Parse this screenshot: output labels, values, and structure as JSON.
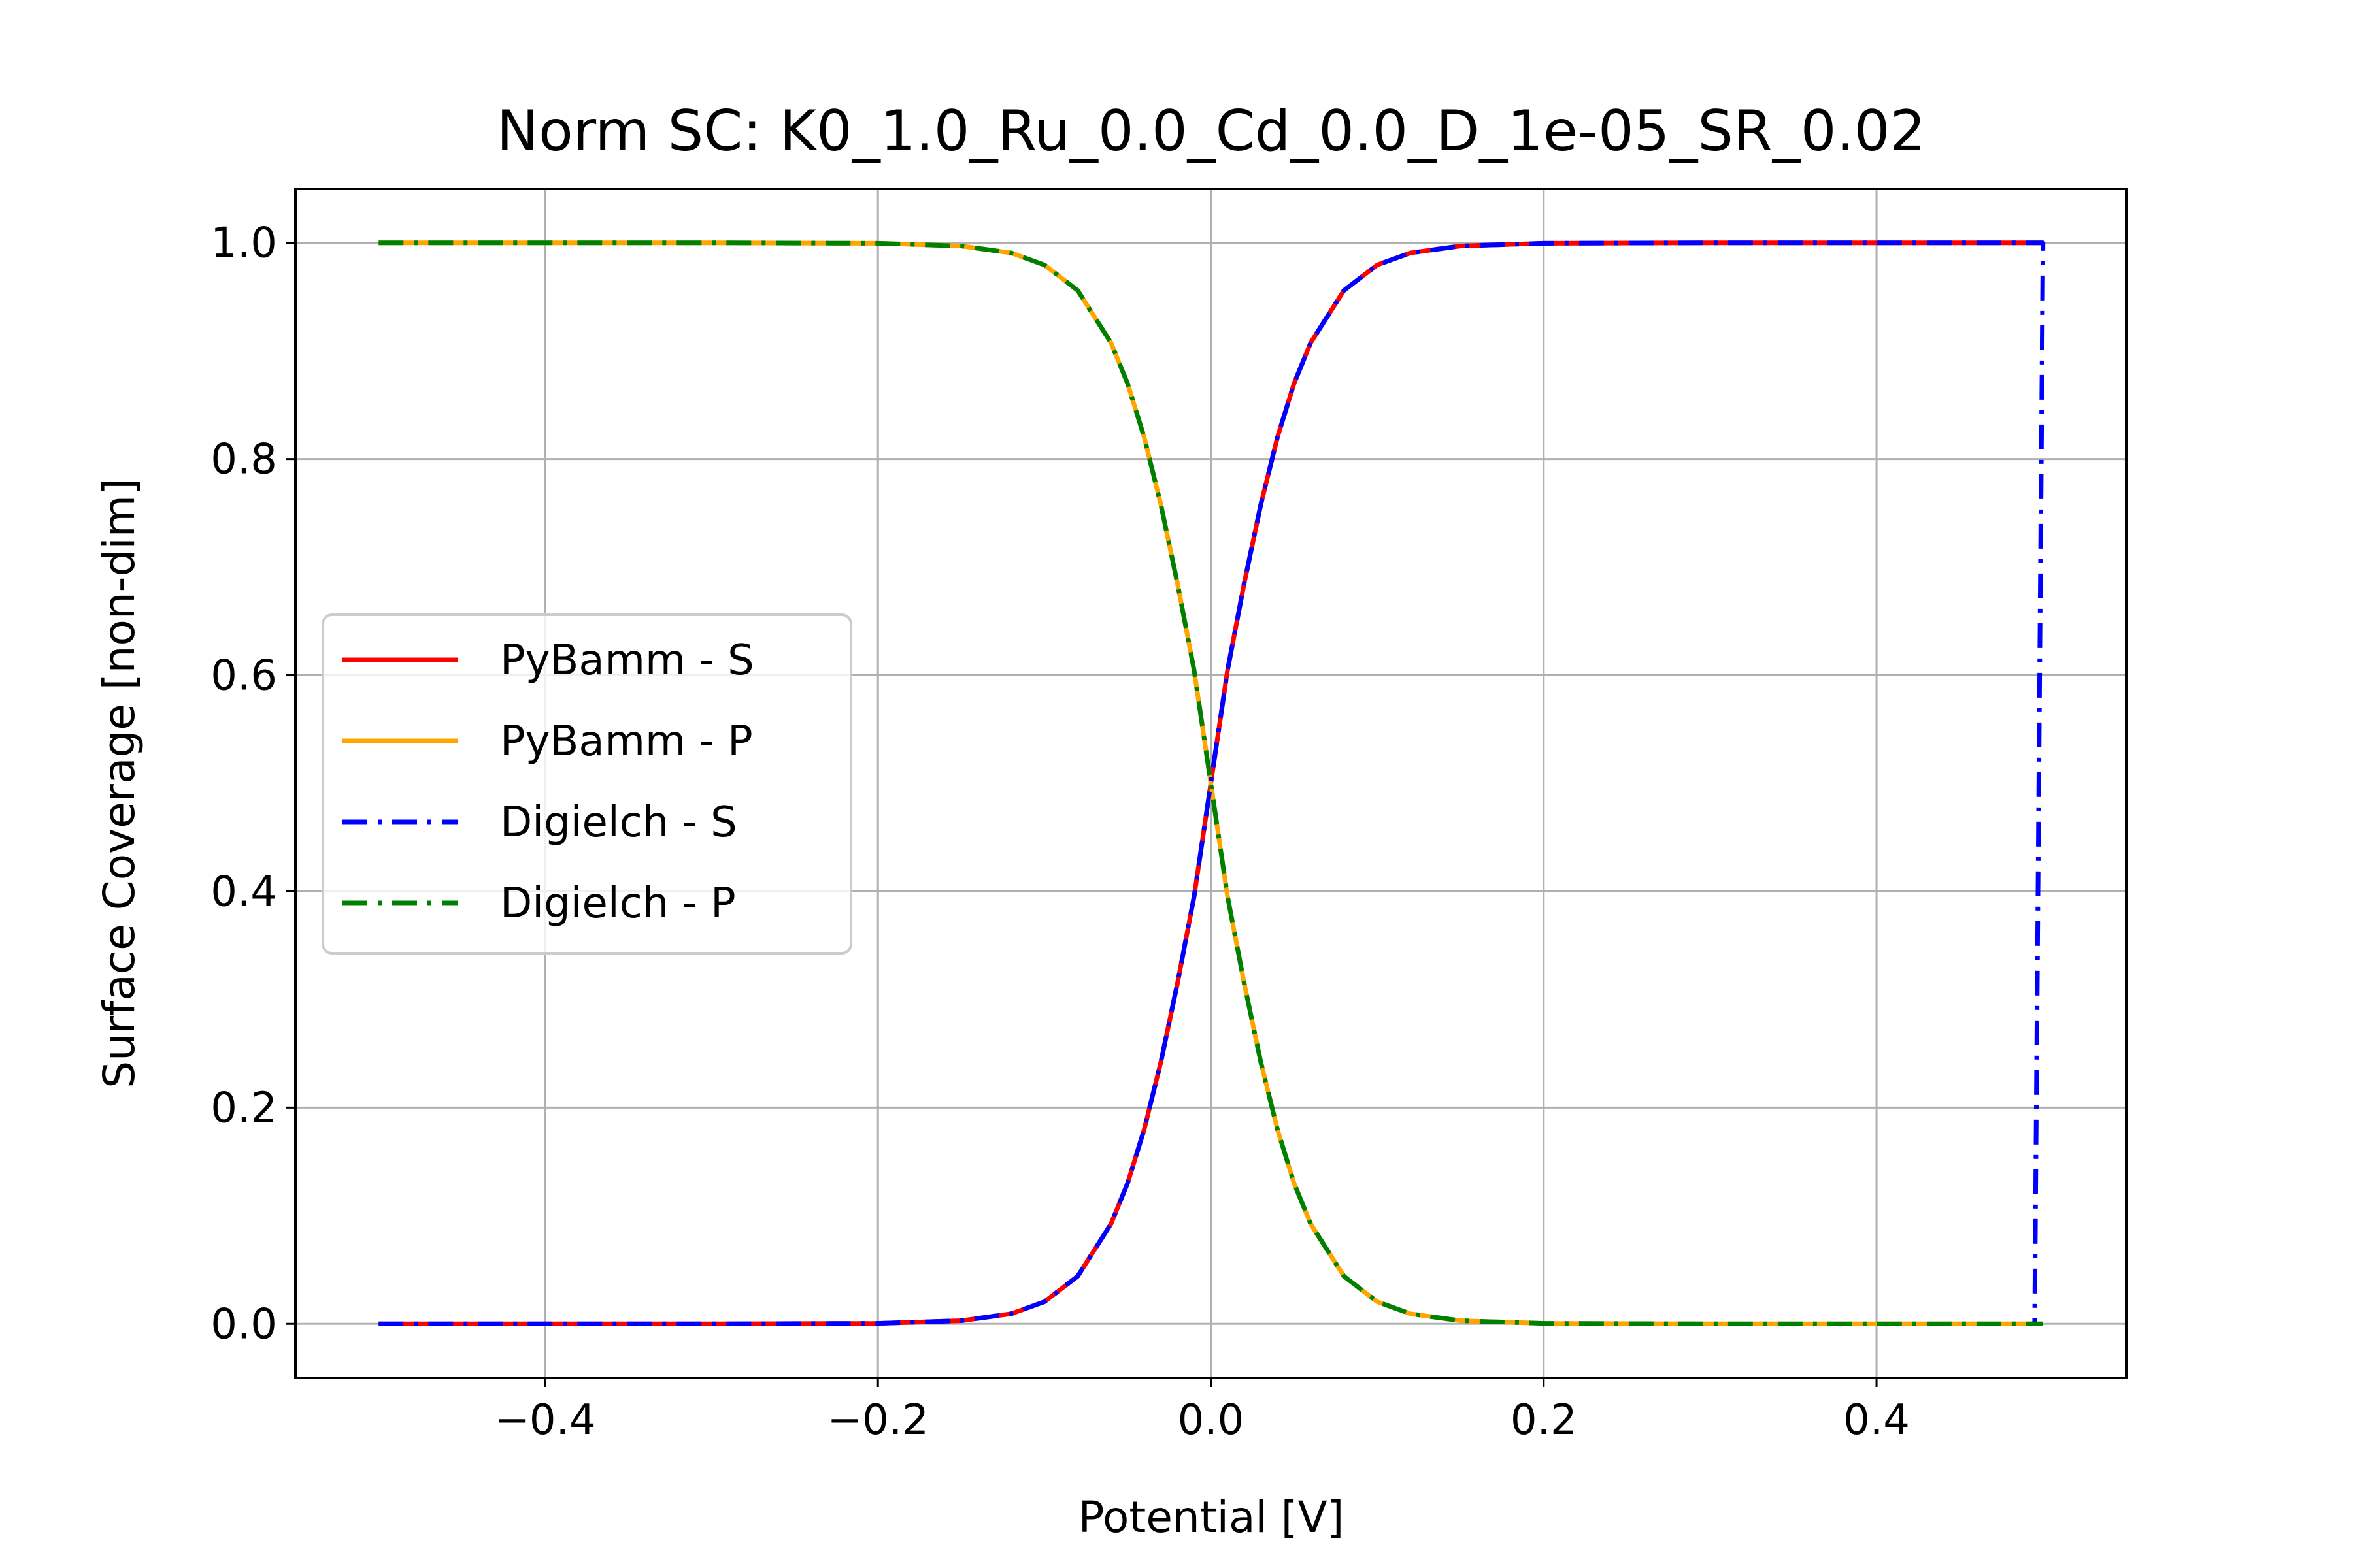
{
  "chart_data": {
    "type": "line",
    "title": "Norm SC: K0_1.0_Ru_0.0_Cd_0.0_D_1e-05_SR_0.02",
    "xlabel": "Potential [V]",
    "ylabel": "Surface Coverage [non-dim]",
    "xlim": [
      -0.55,
      0.55
    ],
    "ylim": [
      -0.05,
      1.05
    ],
    "xticks": [
      -0.4,
      -0.2,
      0.0,
      0.2,
      0.4
    ],
    "xtick_labels": [
      "−0.4",
      "−0.2",
      "0.0",
      "0.2",
      "0.4"
    ],
    "yticks": [
      0.0,
      0.2,
      0.4,
      0.6,
      0.8,
      1.0
    ],
    "ytick_labels": [
      "0.0",
      "0.2",
      "0.4",
      "0.6",
      "0.8",
      "1.0"
    ],
    "grid": true,
    "legend_position": "center-left",
    "x": [
      -0.5,
      -0.4,
      -0.3,
      -0.2,
      -0.15,
      -0.12,
      -0.1,
      -0.08,
      -0.06,
      -0.05,
      -0.04,
      -0.03,
      -0.02,
      -0.01,
      0.0,
      0.01,
      0.02,
      0.03,
      0.04,
      0.05,
      0.06,
      0.08,
      0.1,
      0.12,
      0.15,
      0.2,
      0.3,
      0.4,
      0.5
    ],
    "series": [
      {
        "name": "PyBamm - S",
        "color": "#ff0000",
        "style": "solid",
        "values": [
          0.0,
          0.0,
          0.0,
          0.0004,
          0.0029,
          0.0093,
          0.0204,
          0.044,
          0.0924,
          0.1302,
          0.1799,
          0.2423,
          0.3155,
          0.3956,
          0.5,
          0.6044,
          0.6845,
          0.7577,
          0.8201,
          0.8698,
          0.9076,
          0.956,
          0.9796,
          0.9907,
          0.9971,
          0.9996,
          1.0,
          1.0,
          1.0
        ]
      },
      {
        "name": "PyBamm - P",
        "color": "#ffa500",
        "style": "solid",
        "values": [
          1.0,
          1.0,
          1.0,
          0.9996,
          0.9971,
          0.9907,
          0.9796,
          0.956,
          0.9076,
          0.8698,
          0.8201,
          0.7577,
          0.6845,
          0.6044,
          0.5,
          0.3956,
          0.3155,
          0.2423,
          0.1799,
          0.1302,
          0.0924,
          0.044,
          0.0204,
          0.0093,
          0.0029,
          0.0004,
          0.0,
          0.0,
          0.0
        ]
      },
      {
        "name": "Digielch - S",
        "color": "#0000ff",
        "style": "dashdot",
        "values": [
          0.0,
          0.0,
          0.0,
          0.0004,
          0.0029,
          0.0093,
          0.0204,
          0.044,
          0.0924,
          0.1302,
          0.1799,
          0.2423,
          0.3155,
          0.3956,
          0.5,
          0.6044,
          0.6845,
          0.7577,
          0.8201,
          0.8698,
          0.9076,
          0.956,
          0.9796,
          0.9907,
          0.9971,
          0.9996,
          1.0,
          1.0,
          1.0
        ],
        "extra_points": [
          [
            0.495,
            0.0
          ]
        ]
      },
      {
        "name": "Digielch - P",
        "color": "#008000",
        "style": "dashdot",
        "values": [
          1.0,
          1.0,
          1.0,
          0.9996,
          0.9971,
          0.9907,
          0.9796,
          0.956,
          0.9076,
          0.8698,
          0.8201,
          0.7577,
          0.6845,
          0.6044,
          0.5,
          0.3956,
          0.3155,
          0.2423,
          0.1799,
          0.1302,
          0.0924,
          0.044,
          0.0204,
          0.0093,
          0.0029,
          0.0004,
          0.0,
          0.0,
          0.0
        ]
      }
    ]
  }
}
